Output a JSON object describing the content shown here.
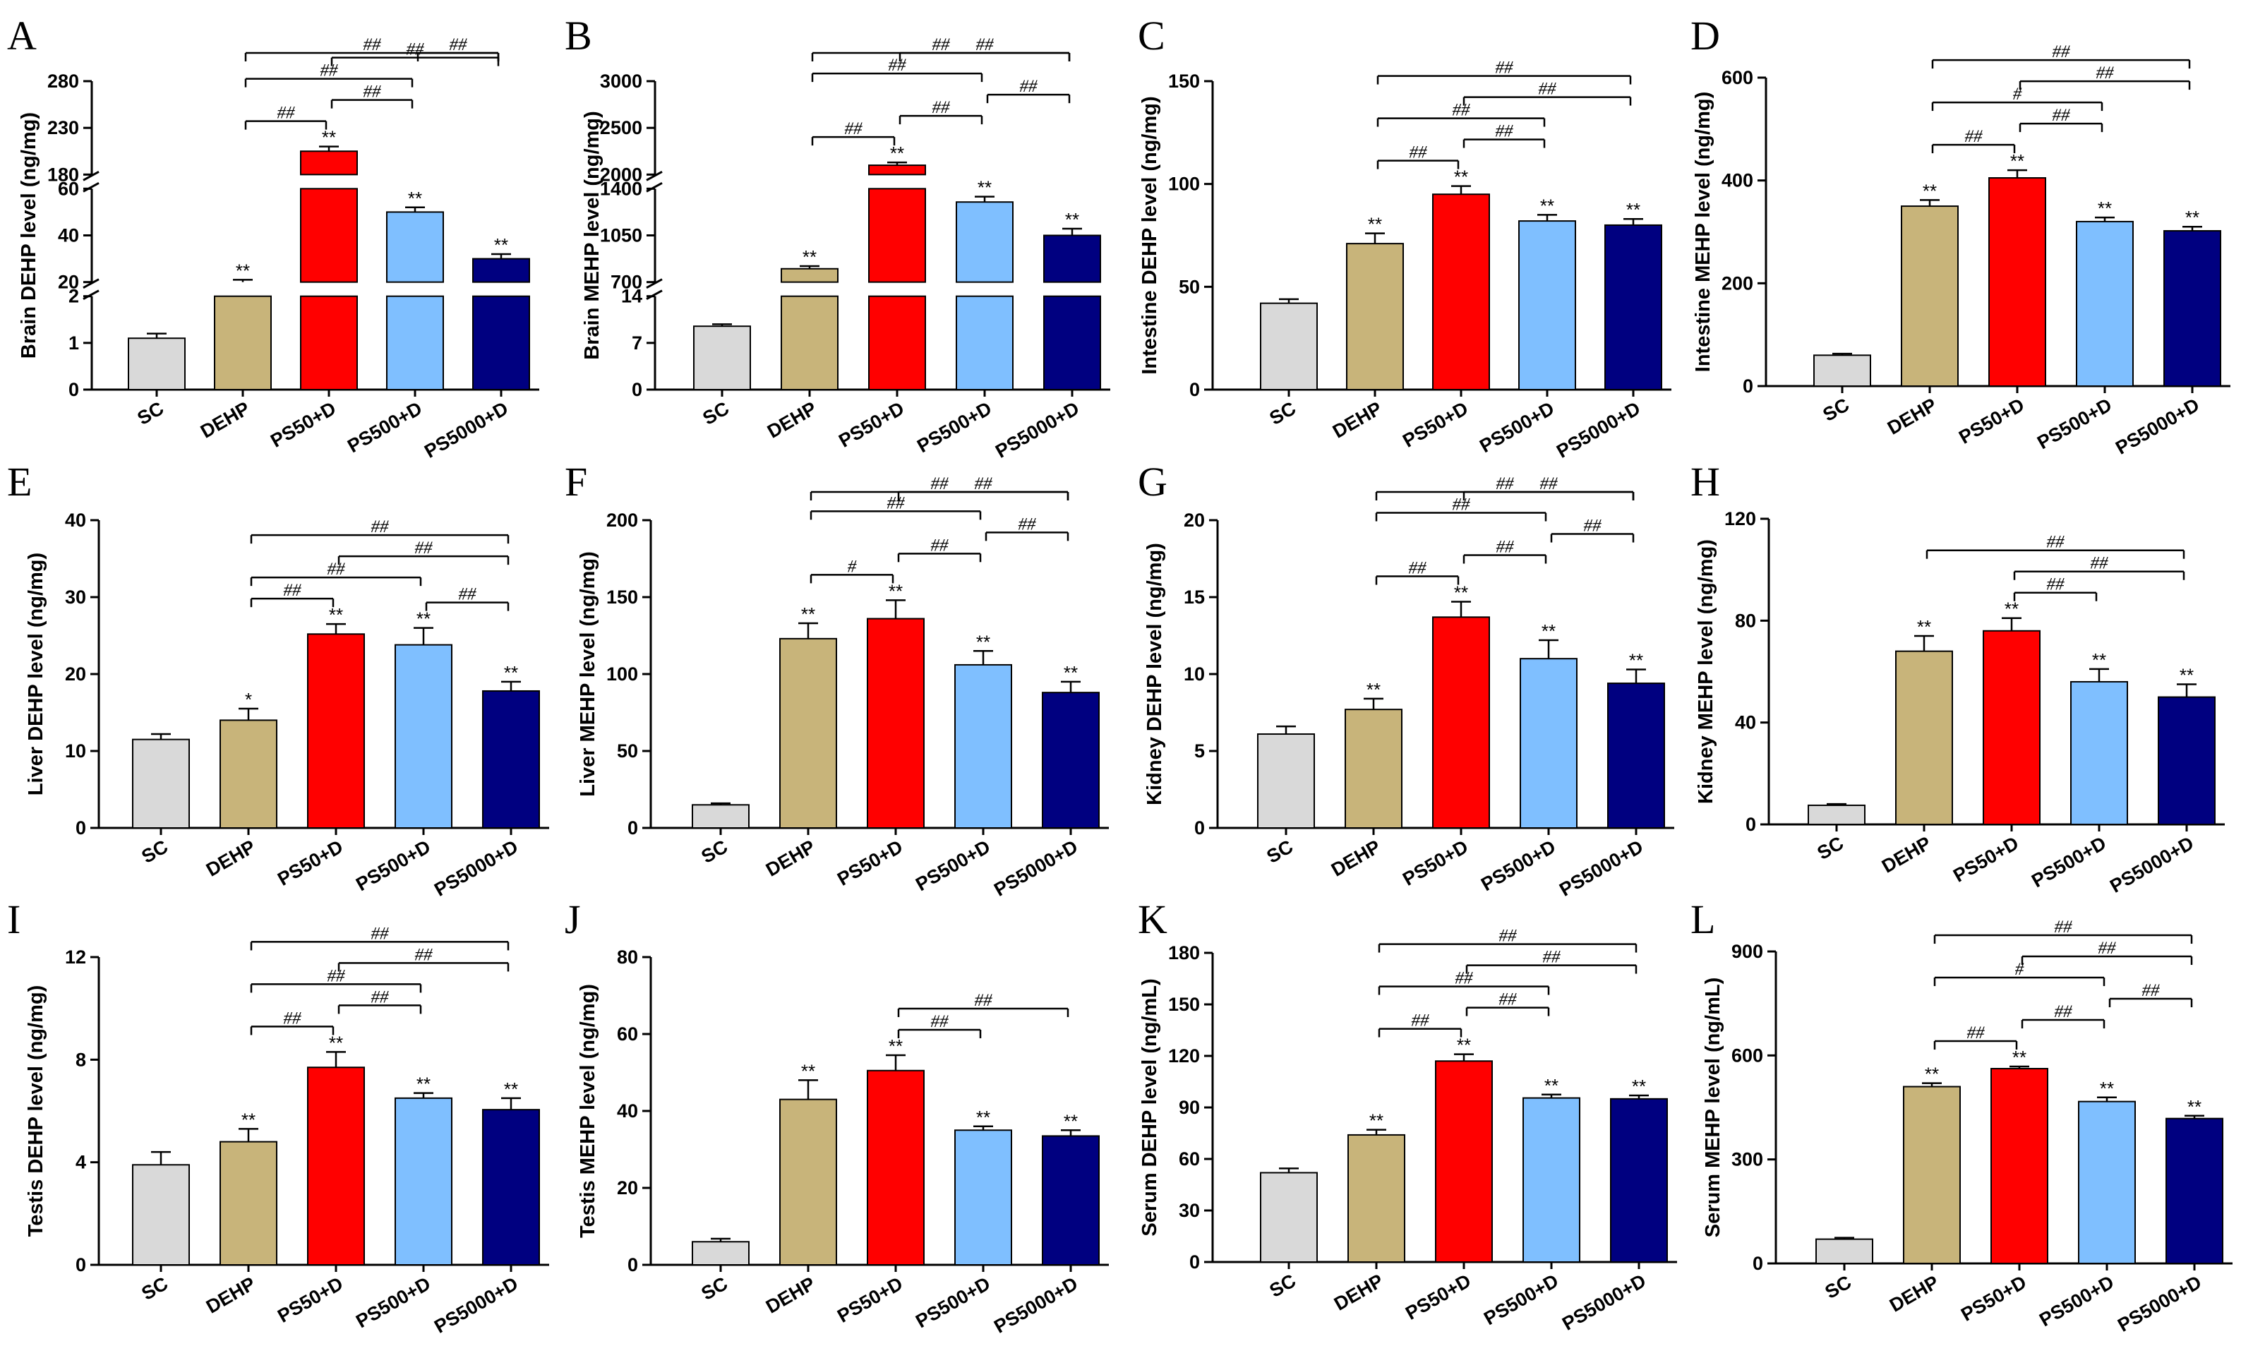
{
  "colors": {
    "SC": "#d9d9d9",
    "DEHP": "#c8b47a",
    "PS50+D": "#ff0000",
    "PS500+D": "#7fbfff",
    "PS5000+D": "#000080"
  },
  "chart_data": [
    {
      "panel": "A",
      "type": "bar",
      "ylabel": "Brain DEHP level (ng/mg)",
      "categories": [
        "SC",
        "DEHP",
        "PS50+D",
        "PS500+D",
        "PS5000+D"
      ],
      "values": [
        1.1,
        20,
        205,
        50,
        30
      ],
      "errors": [
        0.1,
        1,
        5,
        2,
        2
      ],
      "stars": [
        "",
        "**",
        "**",
        "**",
        "**"
      ],
      "axis_break": true,
      "segments": [
        {
          "range": [
            0,
            2
          ],
          "ticks": [
            "0",
            "1",
            "2"
          ]
        },
        {
          "range": [
            20,
            60
          ],
          "ticks": [
            "20",
            "40",
            "60"
          ]
        },
        {
          "range": [
            180,
            280
          ],
          "ticks": [
            "180",
            "230",
            "280"
          ]
        }
      ],
      "comparisons": [
        {
          "from": "DEHP",
          "to": "PS50+D",
          "label": "##"
        },
        {
          "from": "PS50+D",
          "to": "PS500+D",
          "label": "##"
        },
        {
          "from": "DEHP",
          "to": "PS500+D",
          "label": "##"
        },
        {
          "from": "PS50+D",
          "to": "PS5000+D",
          "label": "##"
        },
        {
          "from": "DEHP",
          "to": "PS5000+D",
          "label": "##"
        },
        {
          "from": "PS500+D",
          "to": "PS5000+D",
          "label": "##"
        }
      ]
    },
    {
      "panel": "B",
      "type": "bar",
      "ylabel": "Brain MEHP level (ng/mg)",
      "categories": [
        "SC",
        "DEHP",
        "PS50+D",
        "PS500+D",
        "PS5000+D"
      ],
      "values": [
        9.5,
        800,
        2100,
        1300,
        1050
      ],
      "errors": [
        0.3,
        20,
        30,
        40,
        50
      ],
      "stars": [
        "",
        "**",
        "**",
        "**",
        "**"
      ],
      "axis_break": true,
      "segments": [
        {
          "range": [
            0,
            14
          ],
          "ticks": [
            "0",
            "7",
            "14"
          ]
        },
        {
          "range": [
            700,
            1400
          ],
          "ticks": [
            "700",
            "1050",
            "1400"
          ]
        },
        {
          "range": [
            2000,
            3000
          ],
          "ticks": [
            "2000",
            "2500",
            "3000"
          ]
        }
      ],
      "comparisons": [
        {
          "from": "DEHP",
          "to": "PS50+D",
          "label": "##"
        },
        {
          "from": "PS50+D",
          "to": "PS500+D",
          "label": "##"
        },
        {
          "from": "PS500+D",
          "to": "PS5000+D",
          "label": "##"
        },
        {
          "from": "DEHP",
          "to": "PS500+D",
          "label": "##"
        },
        {
          "from": "PS50+D",
          "to": "PS5000+D",
          "label": "##"
        },
        {
          "from": "DEHP",
          "to": "PS5000+D",
          "label": "##"
        }
      ]
    },
    {
      "panel": "C",
      "type": "bar",
      "ylabel": "Intestine DEHP level (ng/mg)",
      "categories": [
        "SC",
        "DEHP",
        "PS50+D",
        "PS500+D",
        "PS5000+D"
      ],
      "values": [
        42,
        71,
        95,
        82,
        80
      ],
      "errors": [
        2,
        5,
        4,
        3,
        3
      ],
      "stars": [
        "",
        "**",
        "**",
        "**",
        "**"
      ],
      "ylim": [
        0,
        150
      ],
      "yticks": [
        0,
        50,
        100,
        150
      ],
      "comparisons": [
        {
          "from": "DEHP",
          "to": "PS50+D",
          "label": "##"
        },
        {
          "from": "PS50+D",
          "to": "PS500+D",
          "label": "##"
        },
        {
          "from": "DEHP",
          "to": "PS500+D",
          "label": "##"
        },
        {
          "from": "PS50+D",
          "to": "PS5000+D",
          "label": "##"
        },
        {
          "from": "DEHP",
          "to": "PS5000+D",
          "label": "##"
        }
      ]
    },
    {
      "panel": "D",
      "type": "bar",
      "ylabel": "Intestine MEHP level (ng/mg)",
      "categories": [
        "SC",
        "DEHP",
        "PS50+D",
        "PS500+D",
        "PS5000+D"
      ],
      "values": [
        60,
        350,
        405,
        320,
        302
      ],
      "errors": [
        3,
        12,
        15,
        8,
        8
      ],
      "stars": [
        "",
        "**",
        "**",
        "**",
        "**"
      ],
      "ylim": [
        0,
        600
      ],
      "yticks": [
        0,
        200,
        400,
        600
      ],
      "comparisons": [
        {
          "from": "DEHP",
          "to": "PS50+D",
          "label": "##"
        },
        {
          "from": "PS50+D",
          "to": "PS500+D",
          "label": "##"
        },
        {
          "from": "DEHP",
          "to": "PS500+D",
          "label": "#"
        },
        {
          "from": "PS50+D",
          "to": "PS5000+D",
          "label": "##"
        },
        {
          "from": "DEHP",
          "to": "PS5000+D",
          "label": "##"
        }
      ]
    },
    {
      "panel": "E",
      "type": "bar",
      "ylabel": "Liver DEHP level (ng/mg)",
      "categories": [
        "SC",
        "DEHP",
        "PS50+D",
        "PS500+D",
        "PS5000+D"
      ],
      "values": [
        11.5,
        14,
        25.2,
        23.8,
        17.8
      ],
      "errors": [
        0.7,
        1.5,
        1.3,
        2.2,
        1.2
      ],
      "stars": [
        "",
        "*",
        "**",
        "**",
        "**"
      ],
      "ylim": [
        0,
        40
      ],
      "yticks": [
        0,
        10,
        20,
        30,
        40
      ],
      "comparisons": [
        {
          "from": "DEHP",
          "to": "PS50+D",
          "label": "##"
        },
        {
          "from": "PS500+D",
          "to": "PS5000+D",
          "label": "##"
        },
        {
          "from": "DEHP",
          "to": "PS500+D",
          "label": "##"
        },
        {
          "from": "PS50+D",
          "to": "PS5000+D",
          "label": "##"
        },
        {
          "from": "DEHP",
          "to": "PS5000+D",
          "label": "##"
        }
      ]
    },
    {
      "panel": "F",
      "type": "bar",
      "ylabel": "Liver MEHP level (ng/mg)",
      "categories": [
        "SC",
        "DEHP",
        "PS50+D",
        "PS500+D",
        "PS5000+D"
      ],
      "values": [
        15,
        123,
        136,
        106,
        88
      ],
      "errors": [
        1,
        10,
        12,
        9,
        7
      ],
      "stars": [
        "",
        "**",
        "**",
        "**",
        "**"
      ],
      "ylim": [
        0,
        200
      ],
      "yticks": [
        0,
        50,
        100,
        150,
        200
      ],
      "comparisons": [
        {
          "from": "DEHP",
          "to": "PS50+D",
          "label": "#"
        },
        {
          "from": "PS50+D",
          "to": "PS500+D",
          "label": "##"
        },
        {
          "from": "PS500+D",
          "to": "PS5000+D",
          "label": "##"
        },
        {
          "from": "DEHP",
          "to": "PS500+D",
          "label": "##"
        },
        {
          "from": "PS50+D",
          "to": "PS5000+D",
          "label": "##"
        },
        {
          "from": "DEHP",
          "to": "PS5000+D",
          "label": "##"
        }
      ]
    },
    {
      "panel": "G",
      "type": "bar",
      "ylabel": "Kidney DEHP level (ng/mg)",
      "categories": [
        "SC",
        "DEHP",
        "PS50+D",
        "PS500+D",
        "PS5000+D"
      ],
      "values": [
        6.1,
        7.7,
        13.7,
        11.0,
        9.4
      ],
      "errors": [
        0.5,
        0.7,
        1.0,
        1.2,
        0.9
      ],
      "stars": [
        "",
        "**",
        "**",
        "**",
        "**"
      ],
      "ylim": [
        0,
        20
      ],
      "yticks": [
        0,
        5,
        10,
        15,
        20
      ],
      "comparisons": [
        {
          "from": "DEHP",
          "to": "PS50+D",
          "label": "##"
        },
        {
          "from": "PS50+D",
          "to": "PS500+D",
          "label": "##"
        },
        {
          "from": "PS500+D",
          "to": "PS5000+D",
          "label": "##"
        },
        {
          "from": "DEHP",
          "to": "PS500+D",
          "label": "##"
        },
        {
          "from": "PS50+D",
          "to": "PS5000+D",
          "label": "##"
        },
        {
          "from": "DEHP",
          "to": "PS5000+D",
          "label": "##"
        }
      ]
    },
    {
      "panel": "H",
      "type": "bar",
      "ylabel": "Kidney MEHP level (ng/mg)",
      "categories": [
        "SC",
        "DEHP",
        "PS50+D",
        "PS500+D",
        "PS5000+D"
      ],
      "values": [
        7.5,
        68,
        76,
        56,
        50
      ],
      "errors": [
        0.5,
        6,
        5,
        5,
        5
      ],
      "stars": [
        "",
        "**",
        "**",
        "**",
        "**"
      ],
      "ylim": [
        0,
        120
      ],
      "yticks": [
        0,
        40,
        80,
        120
      ],
      "comparisons": [
        {
          "from": "PS50+D",
          "to": "PS500+D",
          "label": "##"
        },
        {
          "from": "PS50+D",
          "to": "PS5000+D",
          "label": "##"
        },
        {
          "from": "DEHP",
          "to": "PS5000+D",
          "label": "##"
        }
      ]
    },
    {
      "panel": "I",
      "type": "bar",
      "ylabel": "Testis DEHP level (ng/mg)",
      "categories": [
        "SC",
        "DEHP",
        "PS50+D",
        "PS500+D",
        "PS5000+D"
      ],
      "values": [
        3.9,
        4.8,
        7.7,
        6.5,
        6.05
      ],
      "errors": [
        0.5,
        0.5,
        0.6,
        0.2,
        0.45
      ],
      "stars": [
        "",
        "**",
        "**",
        "**",
        "**"
      ],
      "ylim": [
        0,
        12
      ],
      "yticks": [
        0,
        4,
        8,
        12
      ],
      "comparisons": [
        {
          "from": "DEHP",
          "to": "PS50+D",
          "label": "##"
        },
        {
          "from": "PS50+D",
          "to": "PS500+D",
          "label": "##"
        },
        {
          "from": "DEHP",
          "to": "PS500+D",
          "label": "##"
        },
        {
          "from": "PS50+D",
          "to": "PS5000+D",
          "label": "##"
        },
        {
          "from": "DEHP",
          "to": "PS5000+D",
          "label": "##"
        }
      ]
    },
    {
      "panel": "J",
      "type": "bar",
      "ylabel": "Testis MEHP level (ng/mg)",
      "categories": [
        "SC",
        "DEHP",
        "PS50+D",
        "PS500+D",
        "PS5000+D"
      ],
      "values": [
        6,
        43,
        50.5,
        35,
        33.5
      ],
      "errors": [
        0.8,
        5,
        4,
        1,
        1.5
      ],
      "stars": [
        "",
        "**",
        "**",
        "**",
        "**"
      ],
      "ylim": [
        0,
        80
      ],
      "yticks": [
        0,
        20,
        40,
        60,
        80
      ],
      "comparisons": [
        {
          "from": "PS50+D",
          "to": "PS500+D",
          "label": "##"
        },
        {
          "from": "PS50+D",
          "to": "PS5000+D",
          "label": "##"
        }
      ]
    },
    {
      "panel": "K",
      "type": "bar",
      "ylabel": "Serum DEHP level (ng/mL)",
      "categories": [
        "SC",
        "DEHP",
        "PS50+D",
        "PS500+D",
        "PS5000+D"
      ],
      "values": [
        52,
        74,
        117,
        95.5,
        95
      ],
      "errors": [
        2.5,
        3,
        4,
        2,
        2
      ],
      "stars": [
        "",
        "**",
        "**",
        "**",
        "**"
      ],
      "ylim": [
        0,
        180
      ],
      "yticks": [
        0,
        30,
        60,
        90,
        120,
        150,
        180
      ],
      "comparisons": [
        {
          "from": "DEHP",
          "to": "PS50+D",
          "label": "##"
        },
        {
          "from": "PS50+D",
          "to": "PS500+D",
          "label": "##"
        },
        {
          "from": "DEHP",
          "to": "PS500+D",
          "label": "##"
        },
        {
          "from": "PS50+D",
          "to": "PS5000+D",
          "label": "##"
        },
        {
          "from": "DEHP",
          "to": "PS5000+D",
          "label": "##"
        }
      ]
    },
    {
      "panel": "L",
      "type": "bar",
      "ylabel": "Serum MEHP level (ng/mL)",
      "categories": [
        "SC",
        "DEHP",
        "PS50+D",
        "PS500+D",
        "PS5000+D"
      ],
      "values": [
        70,
        510,
        562,
        467,
        418
      ],
      "errors": [
        4,
        10,
        6,
        12,
        8
      ],
      "stars": [
        "",
        "**",
        "**",
        "**",
        "**"
      ],
      "ylim": [
        0,
        900
      ],
      "yticks": [
        0,
        300,
        600,
        900
      ],
      "comparisons": [
        {
          "from": "DEHP",
          "to": "PS50+D",
          "label": "##"
        },
        {
          "from": "PS50+D",
          "to": "PS500+D",
          "label": "##"
        },
        {
          "from": "PS500+D",
          "to": "PS5000+D",
          "label": "##"
        },
        {
          "from": "DEHP",
          "to": "PS500+D",
          "label": "#"
        },
        {
          "from": "PS50+D",
          "to": "PS5000+D",
          "label": "##"
        },
        {
          "from": "DEHP",
          "to": "PS5000+D",
          "label": "##"
        }
      ]
    }
  ]
}
